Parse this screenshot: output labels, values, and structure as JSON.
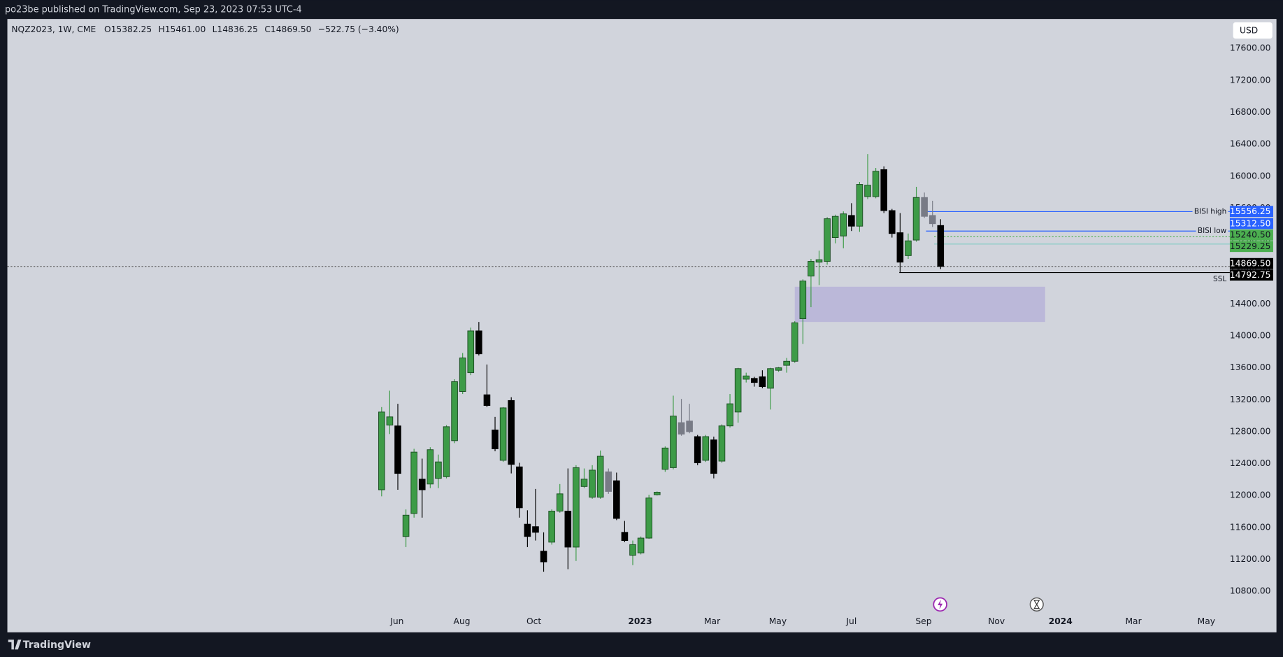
{
  "header": {
    "title": "po23be published on TradingView.com, Sep 23, 2023 07:53 UTC-4"
  },
  "footer": {
    "brand": "TradingView"
  },
  "chart_data": {
    "type": "candlestick",
    "symbol": "NQZ2023, 1W, CME",
    "ohlc_legend": [
      "O15382.25",
      "H15461.00",
      "L14836.25",
      "C14869.50",
      "−522.75 (−3.40%)"
    ],
    "currency": "USD",
    "open": [
      12072,
      12882,
      12872,
      11487,
      11775,
      12205,
      12144,
      12215,
      12236,
      12687,
      13303,
      13539,
      14062,
      13262,
      12821,
      12441,
      13190,
      12359,
      11641,
      11610,
      11303,
      11416,
      11805,
      11805,
      11354,
      12113,
      11979,
      11979,
      12297,
      12185,
      11539,
      11252,
      11282,
      11467,
      12010,
      12328,
      12349,
      12913,
      12933,
      12738,
      12441,
      12697,
      12431,
      12872,
      13046,
      13457,
      13467,
      13487,
      13344,
      13569,
      13631,
      13682,
      14215,
      14749,
      14923,
      14933,
      15231,
      15251,
      15508,
      15374,
      15744,
      15744,
      16082,
      15569,
      15292,
      15005,
      15200,
      15733,
      15508,
      15382.25
    ],
    "high": [
      13108,
      13313,
      13149,
      11826,
      12585,
      12462,
      12605,
      12513,
      12882,
      13457,
      13785,
      14103,
      14174,
      13641,
      12985,
      13108,
      13231,
      12410,
      11815,
      12082,
      11539,
      11826,
      12144,
      12339,
      12380,
      12339,
      12380,
      12564,
      12339,
      12287,
      11682,
      11436,
      11487,
      12010,
      12051,
      12615,
      13251,
      13210,
      13149,
      12759,
      12759,
      12738,
      12892,
      13272,
      13600,
      13539,
      13487,
      13569,
      13600,
      13610,
      13723,
      14185,
      14708,
      14964,
      15067,
      15487,
      15518,
      15559,
      15662,
      15928,
      16277,
      16103,
      16123,
      15590,
      15538,
      15282,
      15867,
      15795,
      15692,
      15461
    ],
    "low": [
      11990,
      12770,
      12072,
      11354,
      11723,
      11723,
      12093,
      12093,
      12215,
      12656,
      13272,
      13508,
      13754,
      13108,
      12554,
      12421,
      12277,
      11723,
      11354,
      11436,
      11046,
      11385,
      11785,
      11077,
      11180,
      12093,
      11959,
      11959,
      12021,
      11692,
      11416,
      11128,
      11262,
      11457,
      12000,
      12297,
      12328,
      12749,
      12780,
      12380,
      12421,
      12215,
      12410,
      12851,
      12913,
      13416,
      13364,
      13344,
      13077,
      13549,
      13539,
      13662,
      13898,
      14359,
      14636,
      14892,
      15159,
      15097,
      15313,
      15303,
      15713,
      15723,
      15538,
      15231,
      14792.75,
      14964,
      15179,
      15477,
      15364,
      14836.25
    ],
    "close": [
      13046,
      12985,
      12277,
      11754,
      12544,
      12072,
      12574,
      12421,
      12862,
      13426,
      13723,
      14062,
      13775,
      13128,
      12585,
      13098,
      12390,
      11846,
      11487,
      11539,
      11169,
      11805,
      12021,
      11354,
      12349,
      12205,
      12318,
      12492,
      12051,
      11713,
      11436,
      11385,
      11467,
      11969,
      12041,
      12595,
      12995,
      12769,
      12800,
      12410,
      12738,
      12277,
      12872,
      13149,
      13590,
      13498,
      13416,
      13364,
      13590,
      13600,
      13682,
      14164,
      14687,
      14933,
      14954,
      15467,
      15497,
      15528,
      15374,
      15897,
      15887,
      16062,
      15569,
      15282,
      14923,
      15190,
      15733,
      15497,
      15405,
      14869.5
    ],
    "candle_colors": [
      "#3d9b47",
      "#3d9b47",
      "#000000",
      "#3d9b47",
      "#3d9b47",
      "#000000",
      "#3d9b47",
      "#3d9b47",
      "#3d9b47",
      "#3d9b47",
      "#3d9b47",
      "#3d9b47",
      "#000000",
      "#000000",
      "#000000",
      "#3d9b47",
      "#000000",
      "#000000",
      "#000000",
      "#000000",
      "#000000",
      "#3d9b47",
      "#3d9b47",
      "#000000",
      "#3d9b47",
      "#3d9b47",
      "#3d9b47",
      "#3d9b47",
      "#787b86",
      "#000000",
      "#000000",
      "#3d9b47",
      "#3d9b47",
      "#3d9b47",
      "#3d9b47",
      "#3d9b47",
      "#3d9b47",
      "#787b86",
      "#787b86",
      "#000000",
      "#3d9b47",
      "#000000",
      "#3d9b47",
      "#3d9b47",
      "#3d9b47",
      "#3d9b47",
      "#000000",
      "#000000",
      "#3d9b47",
      "#3d9b47",
      "#3d9b47",
      "#3d9b47",
      "#3d9b47",
      "#3d9b47",
      "#3d9b47",
      "#3d9b47",
      "#3d9b47",
      "#3d9b47",
      "#000000",
      "#3d9b47",
      "#3d9b47",
      "#3d9b47",
      "#000000",
      "#000000",
      "#000000",
      "#3d9b47",
      "#3d9b47",
      "#787b86",
      "#787b86",
      "#000000"
    ],
    "xlim": [
      -46.2,
      104.7
    ],
    "xticks": [
      {
        "value": 1.9,
        "label": "Jun"
      },
      {
        "value": 9.9,
        "label": "Aug"
      },
      {
        "value": 18.8,
        "label": "Oct"
      },
      {
        "value": 31.9,
        "label": "2023",
        "bold": true
      },
      {
        "value": 40.8,
        "label": "Mar"
      },
      {
        "value": 48.9,
        "label": "May"
      },
      {
        "value": 58.0,
        "label": "Jul"
      },
      {
        "value": 66.9,
        "label": "Sep"
      },
      {
        "value": 75.9,
        "label": "Nov"
      },
      {
        "value": 83.8,
        "label": "2024",
        "bold": true
      },
      {
        "value": 92.8,
        "label": "Mar"
      },
      {
        "value": 101.8,
        "label": "May"
      }
    ],
    "ylim": [
      10287,
      17969
    ],
    "yticks": [
      {
        "value": 17600,
        "label": "17600.00"
      },
      {
        "value": 17200,
        "label": "17200.00"
      },
      {
        "value": 16800,
        "label": "16800.00"
      },
      {
        "value": 16400,
        "label": "16400.00"
      },
      {
        "value": 16000,
        "label": "16000.00"
      },
      {
        "value": 15600,
        "label": "15600.00"
      },
      {
        "value": 15200,
        "label": "15200.00"
      },
      {
        "value": 14800,
        "label": "14800.00"
      },
      {
        "value": 14400,
        "label": "14400.00"
      },
      {
        "value": 14000,
        "label": "14000.00"
      },
      {
        "value": 13600,
        "label": "13600.00"
      },
      {
        "value": 13200,
        "label": "13200.00"
      },
      {
        "value": 12800,
        "label": "12800.00"
      },
      {
        "value": 12400,
        "label": "12400.00"
      },
      {
        "value": 12000,
        "label": "12000.00"
      },
      {
        "value": 11600,
        "label": "11600.00"
      },
      {
        "value": 11200,
        "label": "11200.00"
      },
      {
        "value": 10800,
        "label": "10800.00"
      }
    ],
    "zones": [
      {
        "x": [
          51.0,
          81.9
        ],
        "y": [
          14174,
          14615
        ],
        "color": "#b7b3d8"
      }
    ],
    "levels": [
      {
        "price": 15556.25,
        "from": 67.2,
        "color": "#2962ff",
        "label": "BISI high"
      },
      {
        "price": 15312.5,
        "from": 67.2,
        "color": "#2962ff",
        "label": "BISI low"
      },
      {
        "price": 15240.5,
        "from": 68.2,
        "color": "#4caf50",
        "dashed": true
      },
      {
        "price": 15150,
        "from": 68.2,
        "color": "#80cbc4"
      },
      {
        "price": 14869.5,
        "color": "#555555",
        "dashed": true
      },
      {
        "price": 14792.75,
        "from": 63.9,
        "color": "#000000",
        "label": "SSL",
        "label_below": true
      }
    ],
    "price_tags": [
      {
        "value": 15556.25,
        "label": "15556.25",
        "color": "#2962ff",
        "text_color": "#ffffff"
      },
      {
        "value": 15312.5,
        "label": "15312.50",
        "color": "#2962ff",
        "text_color": "#ffffff"
      },
      {
        "value": 15240.5,
        "label": "15240.50",
        "color": "#4caf50",
        "text_color": "#131722"
      },
      {
        "value": 15229.25,
        "label": "15229.25",
        "color": "#4caf50",
        "text_color": "#131722"
      },
      {
        "value": 14869.5,
        "label": "14869.50",
        "color": "#000000",
        "text_color": "#ffffff"
      },
      {
        "value": 14792.75,
        "label": "14792.75",
        "color": "#000000",
        "text_color": "#ffffff"
      }
    ]
  }
}
